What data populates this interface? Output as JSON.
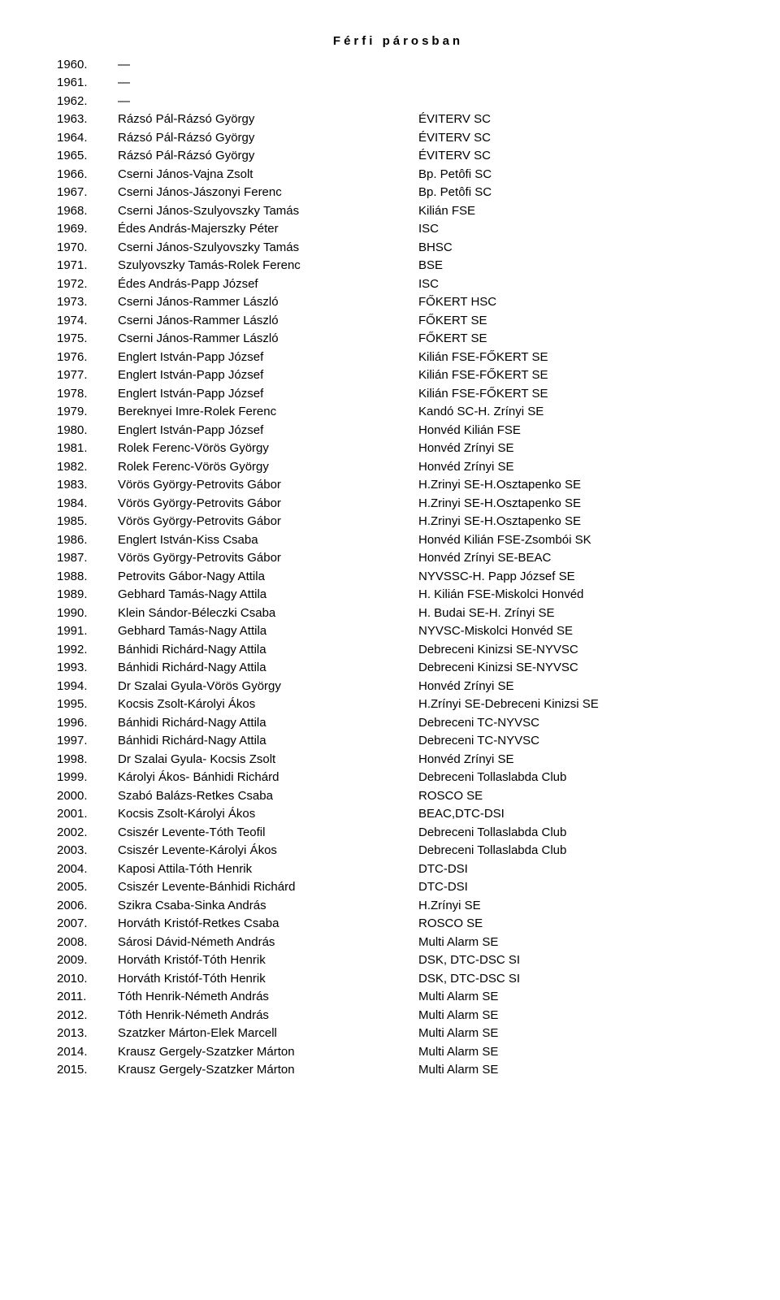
{
  "title": "Férfi párosban",
  "rows": [
    {
      "year": "1960.",
      "names": "—",
      "club": ""
    },
    {
      "year": "1961.",
      "names": "—",
      "club": ""
    },
    {
      "year": "1962.",
      "names": "—",
      "club": ""
    },
    {
      "year": "1963.",
      "names": "Rázsó Pál-Rázsó György",
      "club": "ÉVITERV SC"
    },
    {
      "year": "1964.",
      "names": "Rázsó Pál-Rázsó György",
      "club": "ÉVITERV SC"
    },
    {
      "year": "1965.",
      "names": "Rázsó Pál-Rázsó György",
      "club": "ÉVITERV SC"
    },
    {
      "year": "1966.",
      "names": "Cserni János-Vajna Zsolt",
      "club": "Bp. Petôfi SC"
    },
    {
      "year": "1967.",
      "names": "Cserni János-Jászonyi Ferenc",
      "club": "Bp. Petôfi SC"
    },
    {
      "year": "1968.",
      "names": "Cserni János-Szulyovszky Tamás",
      "club": "Kilián FSE"
    },
    {
      "year": "1969.",
      "names": "Édes András-Majerszky Péter",
      "club": "ISC"
    },
    {
      "year": "1970.",
      "names": "Cserni János-Szulyovszky Tamás",
      "club": "BHSC"
    },
    {
      "year": "1971.",
      "names": "Szulyovszky Tamás-Rolek Ferenc",
      "club": "BSE"
    },
    {
      "year": "1972.",
      "names": "Édes András-Papp József",
      "club": "ISC"
    },
    {
      "year": "1973.",
      "names": "Cserni János-Rammer László",
      "club": "FŐKERT HSC"
    },
    {
      "year": "1974.",
      "names": "Cserni János-Rammer László",
      "club": "FŐKERT SE"
    },
    {
      "year": "1975.",
      "names": "Cserni János-Rammer László",
      "club": "FŐKERT SE"
    },
    {
      "year": "1976.",
      "names": "Englert István-Papp József",
      "club": "Kilián FSE-FŐKERT SE"
    },
    {
      "year": "1977.",
      "names": "Englert István-Papp József",
      "club": "Kilián FSE-FŐKERT SE"
    },
    {
      "year": "1978.",
      "names": "Englert István-Papp József",
      "club": "Kilián FSE-FŐKERT SE"
    },
    {
      "year": "1979.",
      "names": "Bereknyei Imre-Rolek Ferenc",
      "club": "Kandó SC-H. Zrínyi SE"
    },
    {
      "year": "1980.",
      "names": "Englert István-Papp József",
      "club": "Honvéd Kilián FSE"
    },
    {
      "year": "1981.",
      "names": "Rolek Ferenc-Vörös György",
      "club": "Honvéd Zrínyi SE"
    },
    {
      "year": "1982.",
      "names": "Rolek Ferenc-Vörös György",
      "club": "Honvéd Zrínyi SE"
    },
    {
      "year": "1983.",
      "names": "Vörös György-Petrovits Gábor",
      "club": "H.Zrinyi SE-H.Osztapenko SE"
    },
    {
      "year": "1984.",
      "names": "Vörös György-Petrovits Gábor",
      "club": "H.Zrinyi SE-H.Osztapenko SE"
    },
    {
      "year": "1985.",
      "names": "Vörös György-Petrovits Gábor",
      "club": "H.Zrinyi SE-H.Osztapenko SE"
    },
    {
      "year": "1986.",
      "names": "Englert István-Kiss Csaba",
      "club": "Honvéd Kilián FSE-Zsombói SK"
    },
    {
      "year": "1987.",
      "names": "Vörös György-Petrovits Gábor",
      "club": "Honvéd Zrínyi SE-BEAC"
    },
    {
      "year": "1988.",
      "names": "Petrovits Gábor-Nagy Attila",
      "club": "NYVSSC-H. Papp József SE"
    },
    {
      "year": "1989.",
      "names": "Gebhard Tamás-Nagy Attila",
      "club": "H. Kilián FSE-Miskolci Honvéd"
    },
    {
      "year": "1990.",
      "names": "Klein Sándor-Béleczki Csaba",
      "club": "H. Budai SE-H. Zrínyi SE"
    },
    {
      "year": "1991.",
      "names": "Gebhard Tamás-Nagy Attila",
      "club": "NYVSC-Miskolci Honvéd SE"
    },
    {
      "year": "1992.",
      "names": "Bánhidi Richárd-Nagy Attila",
      "club": "Debreceni Kinizsi SE-NYVSC"
    },
    {
      "year": "1993.",
      "names": "Bánhidi Richárd-Nagy Attila",
      "club": "Debreceni Kinizsi SE-NYVSC"
    },
    {
      "year": "1994.",
      "names": "Dr Szalai Gyula-Vörös György",
      "club": "Honvéd Zrínyi SE"
    },
    {
      "year": "1995.",
      "names": "Kocsis Zsolt-Károlyi Ákos",
      "club": "H.Zrínyi SE-Debreceni Kinizsi SE"
    },
    {
      "year": "1996.",
      "names": "Bánhidi Richárd-Nagy Attila",
      "club": "Debreceni TC-NYVSC"
    },
    {
      "year": "1997.",
      "names": "Bánhidi Richárd-Nagy Attila",
      "club": "Debreceni TC-NYVSC"
    },
    {
      "year": "1998.",
      "names": "Dr Szalai Gyula- Kocsis Zsolt",
      "club": "Honvéd Zrínyi SE"
    },
    {
      "year": "1999.",
      "names": "Károlyi Ákos- Bánhidi Richárd",
      "club": "Debreceni Tollaslabda Club"
    },
    {
      "year": "2000.",
      "names": "Szabó Balázs-Retkes Csaba",
      "club": "ROSCO SE"
    },
    {
      "year": "2001.",
      "names": "Kocsis Zsolt-Károlyi Ákos",
      "club": "BEAC,DTC-DSI"
    },
    {
      "year": "2002.",
      "names": "Csiszér Levente-Tóth Teofil",
      "club": "Debreceni Tollaslabda Club"
    },
    {
      "year": "2003.",
      "names": "Csiszér Levente-Károlyi Ákos",
      "club": "Debreceni Tollaslabda Club"
    },
    {
      "year": "2004.",
      "names": "Kaposi Attila-Tóth Henrik",
      "club": "DTC-DSI"
    },
    {
      "year": "2005.",
      "names": "Csiszér Levente-Bánhidi Richárd",
      "club": "DTC-DSI"
    },
    {
      "year": "2006.",
      "names": "Szikra Csaba-Sinka András",
      "club": "H.Zrínyi SE"
    },
    {
      "year": "2007.",
      "names": "Horváth Kristóf-Retkes Csaba",
      "club": "ROSCO SE"
    },
    {
      "year": "2008.",
      "names": "Sárosi Dávid-Németh András",
      "club": "Multi Alarm SE"
    },
    {
      "year": "2009.",
      "names": "Horváth Kristóf-Tóth Henrik",
      "club": "DSK, DTC-DSC SI"
    },
    {
      "year": "2010.",
      "names": "Horváth Kristóf-Tóth Henrik",
      "club": "DSK, DTC-DSC SI"
    },
    {
      "year": "2011.",
      "names": "Tóth Henrik-Németh András",
      "club": "Multi Alarm SE"
    },
    {
      "year": "2012.",
      "names": "Tóth Henrik-Németh András",
      "club": "Multi Alarm SE"
    },
    {
      "year": "2013.",
      "names": "Szatzker Márton-Elek Marcell",
      "club": "Multi Alarm SE"
    },
    {
      "year": "2014.",
      "names": "Krausz Gergely-Szatzker Márton",
      "club": "Multi Alarm SE"
    },
    {
      "year": "2015.",
      "names": "Krausz Gergely-Szatzker Márton",
      "club": "Multi Alarm SE"
    }
  ]
}
